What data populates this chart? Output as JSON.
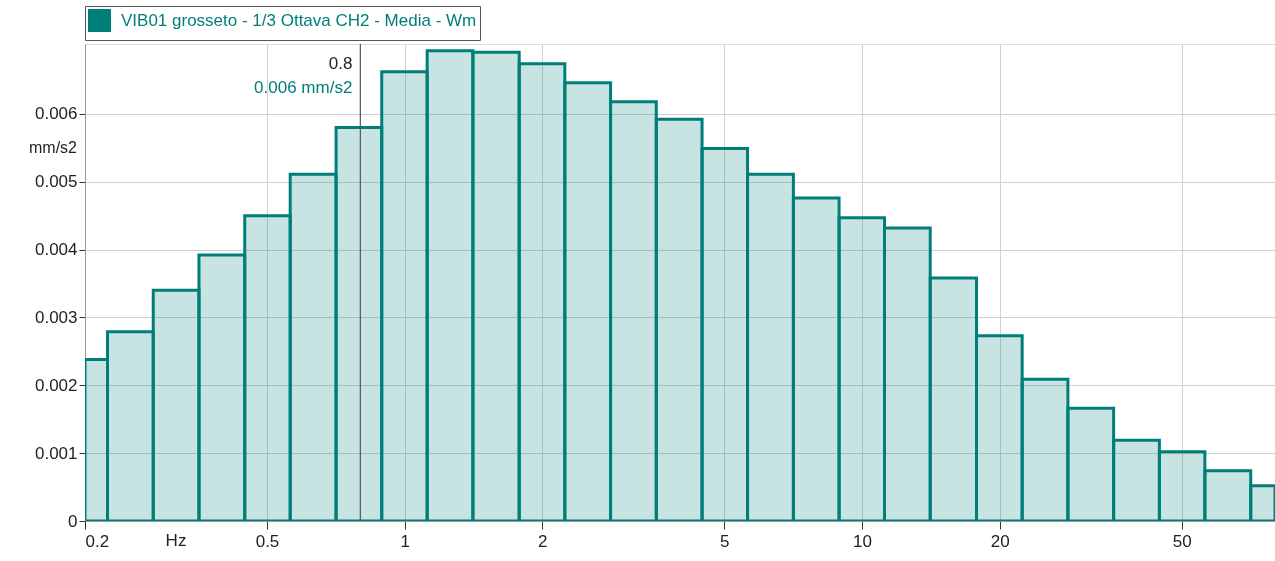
{
  "chart_data": {
    "type": "histogram",
    "xlabel": "Hz",
    "ylabel": "mm/s2",
    "bins": [
      0.2,
      0.224,
      0.282,
      0.355,
      0.447,
      0.562,
      0.708,
      0.891,
      1.12,
      1.41,
      1.78,
      2.24,
      2.82,
      3.55,
      4.47,
      5.62,
      7.08,
      8.91,
      11.2,
      14.1,
      17.8,
      22.4,
      28.2,
      35.5,
      44.7,
      56.2,
      70.8,
      80
    ],
    "series": [
      {
        "name": "VIB01 grosseto - 1/3 Ottava CH2 - Media - Wm",
        "color": "#007f7a",
        "values": [
          0.00238,
          0.00279,
          0.0034,
          0.00392,
          0.0045,
          0.00511,
          0.0058,
          0.00662,
          0.00693,
          0.00691,
          0.00674,
          0.00646,
          0.00618,
          0.00592,
          0.00549,
          0.00511,
          0.00476,
          0.00447,
          0.00432,
          0.00358,
          0.00273,
          0.00209,
          0.00166,
          0.00119,
          0.00102,
          0.00074,
          0.00052
        ]
      }
    ],
    "xlim": [
      0.2,
      80
    ],
    "xticks": [
      0.2,
      0.5,
      1,
      2,
      5,
      10,
      20,
      50
    ],
    "ylim": [
      0,
      0.00703
    ],
    "yticks": [
      0,
      0.001,
      0.002,
      0.003,
      0.004,
      0.005,
      0.006
    ],
    "log": "x",
    "grid": true,
    "legend": "top",
    "ref_lines": [
      {
        "axis": "x",
        "value": 0.8,
        "label": "0.8"
      }
    ],
    "annotations": [
      "0.006 mm/s2"
    ]
  }
}
